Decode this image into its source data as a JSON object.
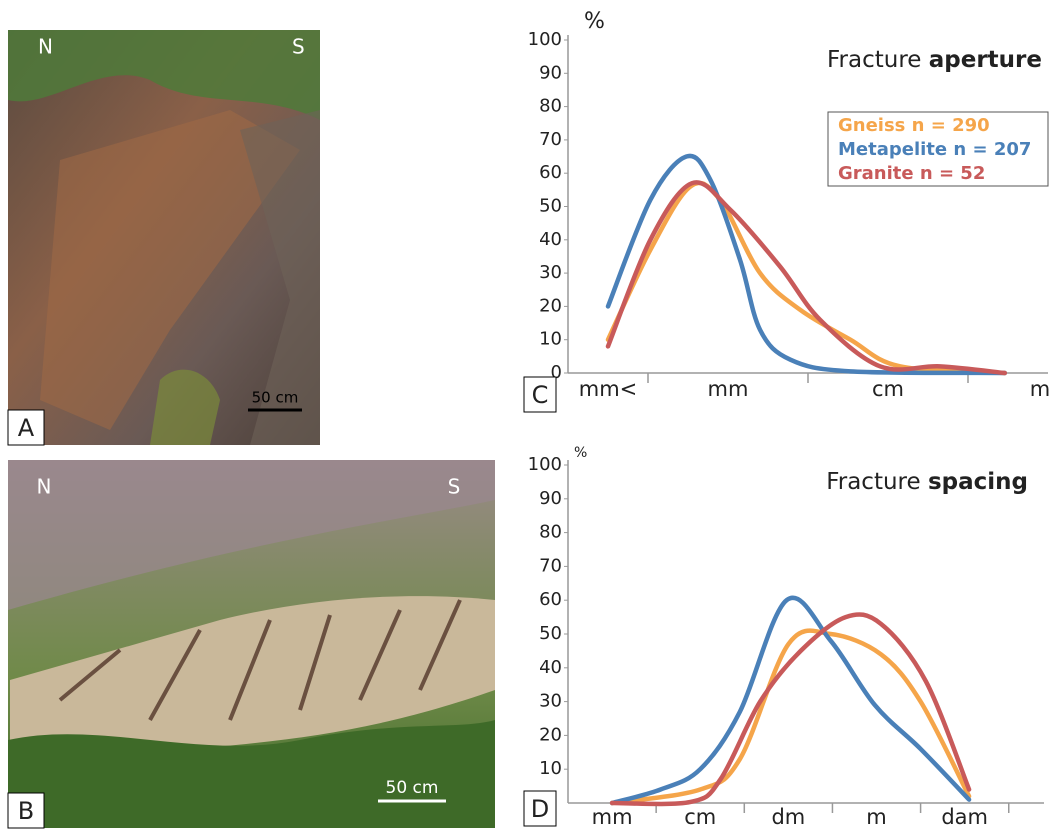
{
  "photos": [
    {
      "label": "A",
      "north": "N",
      "south": "S",
      "scale": "50 cm"
    },
    {
      "label": "B",
      "north": "N",
      "south": "S",
      "scale": "50 cm"
    }
  ],
  "chart_data": [
    {
      "type": "line",
      "panel": "C",
      "title": "Fracture",
      "title_emphasis": "aperture",
      "y_label": "%",
      "xlim": [
        0,
        6
      ],
      "ylim": [
        0,
        100
      ],
      "xticks": [
        {
          "value": 0.5,
          "label": "mm<"
        },
        {
          "value": 2,
          "label": "mm"
        },
        {
          "value": 4,
          "label": "cm"
        },
        {
          "value": 5.9,
          "label": "m"
        }
      ],
      "x_separators": [
        1,
        3,
        5
      ],
      "yticks": [
        0,
        10,
        20,
        30,
        40,
        50,
        60,
        70,
        80,
        90,
        100
      ],
      "legend": "upper right",
      "series": [
        {
          "name": "Gneiss n = 290",
          "color": "#f5a54a",
          "x": [
            0.5,
            1.03,
            1.53,
            1.9,
            2.4,
            2.9,
            3.53,
            4.15,
            5.46
          ],
          "values": [
            10,
            37,
            56,
            52,
            30,
            19,
            10,
            2,
            0
          ]
        },
        {
          "name": "Metapelite n = 207",
          "color": "#4a80b8",
          "x": [
            0.5,
            1.03,
            1.48,
            1.78,
            2.15,
            2.4,
            2.78,
            3.53,
            5.46
          ],
          "values": [
            20,
            52,
            65,
            58,
            34,
            13,
            4,
            0.5,
            0
          ]
        },
        {
          "name": "Granite n = 52",
          "color": "#c85a5a",
          "x": [
            0.5,
            1.03,
            1.55,
            2.03,
            2.65,
            3.15,
            3.9,
            4.65,
            5.46
          ],
          "values": [
            8,
            40,
            57,
            49,
            32,
            16,
            2,
            2,
            0
          ]
        }
      ]
    },
    {
      "type": "line",
      "panel": "D",
      "title": "Fracture",
      "title_emphasis": "spacing",
      "y_label": "%",
      "xlim": [
        -0.5,
        4.9
      ],
      "ylim": [
        0,
        100
      ],
      "xticks": [
        {
          "value": 0,
          "label": "mm"
        },
        {
          "value": 1,
          "label": "cm"
        },
        {
          "value": 2,
          "label": "dm"
        },
        {
          "value": 3,
          "label": "m"
        },
        {
          "value": 4,
          "label": "dam"
        }
      ],
      "x_separators": [
        0.5,
        1.5,
        2.5,
        3.5,
        4.5
      ],
      "yticks": [
        {
          "value": 10,
          "label": "10"
        },
        20,
        30,
        40,
        50,
        60,
        70,
        80,
        90,
        100
      ],
      "series": [
        {
          "color": "#f5a54a",
          "x": [
            0,
            1,
            1.45,
            2,
            2.48,
            3.05,
            3.5,
            4.05
          ],
          "values": [
            0,
            4,
            13,
            47,
            50,
            44,
            30,
            2
          ]
        },
        {
          "color": "#4a80b8",
          "x": [
            0,
            0.55,
            1,
            1.45,
            1.98,
            2.48,
            2.98,
            3.5,
            4.05
          ],
          "values": [
            0,
            4,
            10,
            27,
            60,
            48,
            29,
            16,
            1
          ]
        },
        {
          "color": "#c85a5a",
          "x": [
            0,
            0.89,
            1.23,
            1.68,
            2.14,
            2.65,
            3.05,
            3.56,
            4.05
          ],
          "values": [
            0,
            0.3,
            7,
            30,
            45,
            55,
            53,
            36,
            4
          ]
        }
      ]
    }
  ]
}
